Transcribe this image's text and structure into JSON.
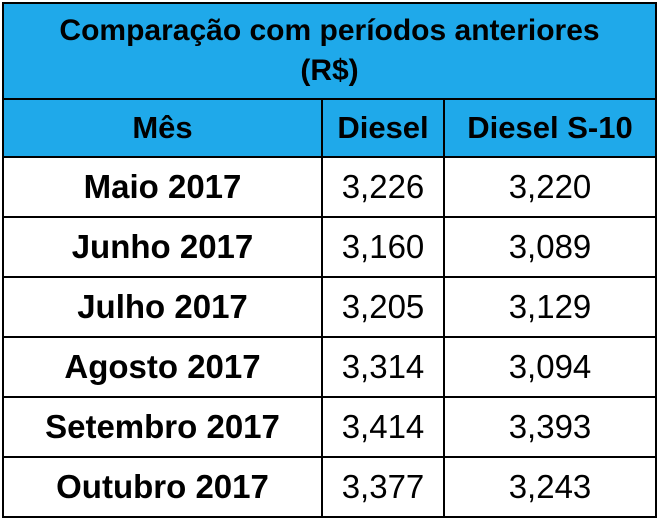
{
  "title_line1": "Comparação com períodos anteriores",
  "title_line2": "(R$)",
  "headers": [
    "Mês",
    "Diesel",
    "Diesel S-10"
  ],
  "rows": [
    {
      "month": "Maio 2017",
      "diesel": "3,226",
      "diesel_s10": "3,220"
    },
    {
      "month": "Junho 2017",
      "diesel": "3,160",
      "diesel_s10": "3,089"
    },
    {
      "month": "Julho 2017",
      "diesel": "3,205",
      "diesel_s10": "3,129"
    },
    {
      "month": "Agosto 2017",
      "diesel": "3,314",
      "diesel_s10": "3,094"
    },
    {
      "month": "Setembro 2017",
      "diesel": "3,414",
      "diesel_s10": "3,393"
    },
    {
      "month": "Outubro 2017",
      "diesel": "3,377",
      "diesel_s10": "3,243"
    }
  ],
  "colors": {
    "header_bg": "#1fa9ea",
    "border": "#000000"
  }
}
